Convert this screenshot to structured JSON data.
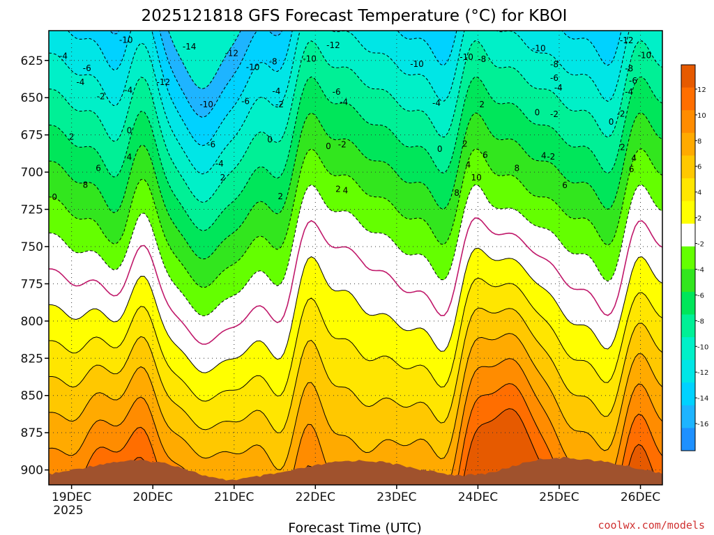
{
  "chart_data": {
    "type": "heatmap",
    "title": "2025121818 GFS Forecast Temperature (°C) for KBOI",
    "xlabel": "Forecast Time (UTC)",
    "ylabel": "",
    "x_ticks": [
      "19DEC",
      "20DEC",
      "21DEC",
      "22DEC",
      "23DEC",
      "24DEC",
      "25DEC",
      "26DEC"
    ],
    "x_subtick": "2025",
    "x_range_days": [
      18.75,
      26.25
    ],
    "y_ticks": [
      625,
      650,
      675,
      700,
      725,
      750,
      775,
      800,
      825,
      850,
      875,
      900
    ],
    "y_range": [
      605,
      905
    ],
    "colorbar": {
      "levels": [
        -18,
        -16,
        -14,
        -12,
        -10,
        -8,
        -6,
        -4,
        -2,
        2,
        4,
        6,
        8,
        10,
        12,
        14
      ],
      "tick_labels": [
        "12",
        "10",
        "8",
        "6",
        "4",
        "2",
        "-2",
        "-4",
        "-6",
        "-8",
        "-10",
        "-12",
        "-14",
        "-16"
      ],
      "colors": [
        "#1e90ff",
        "#1eb4ff",
        "#00d2ff",
        "#00e6e6",
        "#00f0c8",
        "#00f096",
        "#00e65a",
        "#32e61e",
        "#64ff00",
        "#ffffff",
        "#ffff00",
        "#ffe600",
        "#ffc800",
        "#ffaa00",
        "#ff8c00",
        "#ff6e00",
        "#e65a00"
      ]
    },
    "surface_color": "#a0522d",
    "contour_labels": [
      {
        "text": "-10",
        "day": 19.67,
        "p": 626
      },
      {
        "text": "-14",
        "day": 20.45,
        "p": 641
      },
      {
        "text": "-12",
        "day": 20.97,
        "p": 656
      },
      {
        "text": "-10",
        "day": 21.23,
        "p": 687
      },
      {
        "text": "-8",
        "day": 21.48,
        "p": 674
      },
      {
        "text": "-10",
        "day": 21.93,
        "p": 668
      },
      {
        "text": "-12",
        "day": 22.22,
        "p": 638
      },
      {
        "text": "-10",
        "day": 23.25,
        "p": 680
      },
      {
        "text": "-10",
        "day": 23.86,
        "p": 664
      },
      {
        "text": "-8",
        "day": 24.05,
        "p": 669
      },
      {
        "text": "-10",
        "day": 24.75,
        "p": 645
      },
      {
        "text": "-12",
        "day": 25.83,
        "p": 627
      },
      {
        "text": "-10",
        "day": 26.05,
        "p": 660
      },
      {
        "text": "-8",
        "day": 24.94,
        "p": 681
      },
      {
        "text": "-8",
        "day": 25.86,
        "p": 690
      },
      {
        "text": "-6",
        "day": 24.94,
        "p": 711
      },
      {
        "text": "-6",
        "day": 25.91,
        "p": 717
      },
      {
        "text": "-4",
        "day": 24.99,
        "p": 733
      },
      {
        "text": "-4",
        "day": 25.86,
        "p": 742
      },
      {
        "text": "-4",
        "day": 18.9,
        "p": 662
      },
      {
        "text": "-6",
        "day": 19.19,
        "p": 689
      },
      {
        "text": "-4",
        "day": 19.11,
        "p": 720
      },
      {
        "text": "-4",
        "day": 19.7,
        "p": 738
      },
      {
        "text": "-2",
        "day": 19.36,
        "p": 752
      },
      {
        "text": "-12",
        "day": 20.13,
        "p": 720
      },
      {
        "text": "-10",
        "day": 20.66,
        "p": 770
      },
      {
        "text": "-6",
        "day": 21.14,
        "p": 763
      },
      {
        "text": "-4",
        "day": 21.52,
        "p": 741
      },
      {
        "text": "-6",
        "day": 22.26,
        "p": 742
      },
      {
        "text": "-4",
        "day": 22.35,
        "p": 765
      },
      {
        "text": "-2",
        "day": 21.56,
        "p": 770
      },
      {
        "text": "-4",
        "day": 23.49,
        "p": 767
      },
      {
        "text": "2",
        "day": 24.05,
        "p": 770
      },
      {
        "text": "0",
        "day": 24.73,
        "p": 788
      },
      {
        "text": "-2",
        "day": 24.94,
        "p": 792
      },
      {
        "text": "-2",
        "day": 25.76,
        "p": 791
      },
      {
        "text": "0",
        "day": 25.64,
        "p": 809
      },
      {
        "text": "-6",
        "day": 20.72,
        "p": 860
      },
      {
        "text": "-4",
        "day": 20.82,
        "p": 903
      },
      {
        "text": "2",
        "day": 20.86,
        "p": 934
      },
      {
        "text": "0",
        "day": 19.71,
        "p": 829
      },
      {
        "text": "2",
        "day": 19.0,
        "p": 843
      },
      {
        "text": "0",
        "day": 21.44,
        "p": 849
      },
      {
        "text": "0",
        "day": 22.16,
        "p": 864
      },
      {
        "text": "-2",
        "day": 22.33,
        "p": 860
      },
      {
        "text": "0",
        "day": 23.53,
        "p": 870
      },
      {
        "text": "2",
        "day": 23.84,
        "p": 858
      },
      {
        "text": "4",
        "day": 19.71,
        "p": 888
      },
      {
        "text": "6",
        "day": 19.33,
        "p": 913
      },
      {
        "text": "8",
        "day": 19.17,
        "p": 950
      },
      {
        "text": "0",
        "day": 18.79,
        "p": 978
      },
      {
        "text": "2",
        "day": 21.57,
        "p": 976
      },
      {
        "text": "2",
        "day": 22.28,
        "p": 960
      },
      {
        "text": "4",
        "day": 22.37,
        "p": 963
      },
      {
        "text": "6",
        "day": 24.09,
        "p": 883
      },
      {
        "text": "4",
        "day": 24.81,
        "p": 885
      },
      {
        "text": "-2",
        "day": 24.9,
        "p": 887
      },
      {
        "text": "4",
        "day": 23.88,
        "p": 905
      },
      {
        "text": "8",
        "day": 24.48,
        "p": 913
      },
      {
        "text": "10",
        "day": 23.98,
        "p": 934
      },
      {
        "text": "6",
        "day": 25.07,
        "p": 951
      },
      {
        "text": "8",
        "day": 23.74,
        "p": 968
      },
      {
        "text": "6",
        "day": 25.89,
        "p": 915
      },
      {
        "text": "4",
        "day": 25.92,
        "p": 890
      },
      {
        "text": "2",
        "day": 25.78,
        "p": 866
      }
    ]
  },
  "footer": {
    "credit": "coolwx.com/models"
  }
}
